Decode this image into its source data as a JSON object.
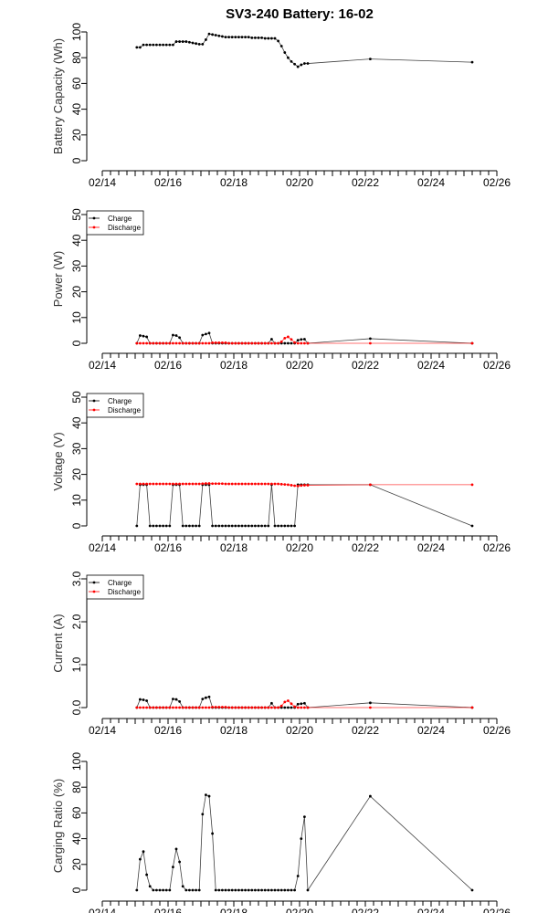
{
  "chart_data": {
    "title": "SV3-240 Battery: 16-02",
    "x_tick_labels": [
      "02/14",
      "02/16",
      "02/18",
      "02/20",
      "02/22",
      "02/24",
      "02/26"
    ],
    "x_tick_days": [
      14,
      16,
      18,
      20,
      22,
      24,
      26
    ],
    "xlim_days": [
      14,
      26
    ],
    "t": [
      15.05,
      15.15,
      15.25,
      15.35,
      15.45,
      15.55,
      15.65,
      15.75,
      15.85,
      15.95,
      16.05,
      16.15,
      16.25,
      16.35,
      16.45,
      16.55,
      16.65,
      16.75,
      16.85,
      16.95,
      17.05,
      17.15,
      17.25,
      17.35,
      17.45,
      17.55,
      17.65,
      17.75,
      17.85,
      17.95,
      18.05,
      18.15,
      18.25,
      18.35,
      18.45,
      18.55,
      18.65,
      18.75,
      18.85,
      18.95,
      19.05,
      19.15,
      19.25,
      19.35,
      19.45,
      19.55,
      19.65,
      19.75,
      19.85,
      19.95,
      20.05,
      20.15,
      20.25,
      22.15,
      25.25
    ],
    "panels": [
      {
        "type": "line",
        "ylabel": "Battery Capacity (Wh)",
        "ylim": [
          0,
          100
        ],
        "yticks": [
          0,
          20,
          40,
          60,
          80,
          100
        ],
        "ytick_labels": [
          "0",
          "20",
          "40",
          "60",
          "80",
          "100"
        ],
        "legend": null,
        "series": [
          {
            "name": "Capacity",
            "color": "#000000",
            "values": [
              88,
              88,
              90,
              90,
              90,
              90,
              90,
              90,
              90,
              90,
              90,
              90,
              92.5,
              92.5,
              92.5,
              92.5,
              92,
              91.5,
              91,
              90.5,
              90.5,
              94,
              98.5,
              98,
              97.5,
              97,
              96.5,
              96,
              96,
              96,
              96,
              96,
              96,
              96,
              96,
              95.5,
              95.5,
              95.5,
              95.5,
              95,
              95,
              95,
              95,
              93,
              89,
              84,
              80,
              77,
              75,
              73,
              74.5,
              75.5,
              75.5,
              79,
              76.5
            ]
          }
        ]
      },
      {
        "type": "line",
        "ylabel": "Power (W)",
        "ylim": [
          0,
          50
        ],
        "yticks": [
          0,
          10,
          20,
          30,
          40,
          50
        ],
        "ytick_labels": [
          "0",
          "10",
          "20",
          "30",
          "40",
          "50"
        ],
        "legend": "top-left",
        "series": [
          {
            "name": "Charge",
            "color": "#000000",
            "values": [
              0,
              3,
              2.8,
              2.5,
              0,
              0,
              0,
              0,
              0,
              0,
              0,
              3.2,
              3.0,
              2.2,
              0,
              0,
              0,
              0,
              0,
              0,
              3.2,
              3.6,
              4.0,
              0,
              0,
              0,
              0,
              0,
              0,
              0,
              0,
              0,
              0,
              0,
              0,
              0,
              0,
              0,
              0,
              0,
              0,
              1.6,
              0,
              0,
              0,
              0,
              0,
              0,
              0,
              1.2,
              1.5,
              1.6,
              0,
              1.8,
              0
            ]
          },
          {
            "name": "Discharge",
            "color": "#ff0000",
            "values": [
              0,
              0,
              0,
              0,
              0,
              0,
              0,
              0,
              0,
              0,
              0,
              0,
              0,
              0,
              0,
              0,
              0,
              0,
              0,
              0,
              0,
              0,
              0,
              0.2,
              0.2,
              0.2,
              0.2,
              0.2,
              0,
              0,
              0,
              0,
              0,
              0,
              0,
              0,
              0,
              0,
              0,
              0,
              0,
              0,
              0,
              0,
              0.6,
              2.0,
              2.5,
              1.5,
              0.3,
              0,
              0,
              0,
              0,
              0,
              0
            ]
          }
        ]
      },
      {
        "type": "line",
        "ylabel": "Voltage (V)",
        "ylim": [
          0,
          50
        ],
        "yticks": [
          0,
          10,
          20,
          30,
          40,
          50
        ],
        "ytick_labels": [
          "0",
          "10",
          "20",
          "30",
          "40",
          "50"
        ],
        "legend": "top-left",
        "series": [
          {
            "name": "Charge",
            "color": "#000000",
            "values": [
              0,
              16,
              16,
              16,
              0,
              0,
              0,
              0,
              0,
              0,
              0,
              16,
              16,
              16,
              0,
              0,
              0,
              0,
              0,
              0,
              16,
              16,
              16,
              0,
              0,
              0,
              0,
              0,
              0,
              0,
              0,
              0,
              0,
              0,
              0,
              0,
              0,
              0,
              0,
              0,
              0,
              16,
              0,
              0,
              0,
              0,
              0,
              0,
              0,
              16,
              16,
              16,
              16,
              16,
              0
            ]
          },
          {
            "name": "Discharge",
            "color": "#ff0000",
            "values": [
              16.3,
              16.3,
              16.3,
              16.3,
              16.3,
              16.3,
              16.3,
              16.3,
              16.3,
              16.3,
              16.3,
              16.3,
              16.3,
              16.3,
              16.3,
              16.3,
              16.3,
              16.3,
              16.3,
              16.3,
              16.4,
              16.5,
              16.5,
              16.4,
              16.4,
              16.4,
              16.4,
              16.3,
              16.3,
              16.3,
              16.3,
              16.3,
              16.3,
              16.3,
              16.3,
              16.3,
              16.3,
              16.3,
              16.3,
              16.3,
              16.3,
              16.3,
              16.3,
              16.3,
              16.2,
              16.1,
              16.0,
              15.8,
              15.6,
              15.5,
              15.7,
              15.8,
              15.8,
              16.0,
              16.0
            ]
          }
        ]
      },
      {
        "type": "line",
        "ylabel": "Current (A)",
        "ylim": [
          0,
          3
        ],
        "yticks": [
          0,
          1,
          2,
          3
        ],
        "ytick_labels": [
          "0.0",
          "1.0",
          "2.0",
          "3.0"
        ],
        "legend": "top-left",
        "series": [
          {
            "name": "Charge",
            "color": "#000000",
            "values": [
              0,
              0.19,
              0.18,
              0.16,
              0,
              0,
              0,
              0,
              0,
              0,
              0,
              0.2,
              0.19,
              0.14,
              0,
              0,
              0,
              0,
              0,
              0,
              0.2,
              0.23,
              0.25,
              0,
              0,
              0,
              0,
              0,
              0,
              0,
              0,
              0,
              0,
              0,
              0,
              0,
              0,
              0,
              0,
              0,
              0,
              0.1,
              0,
              0,
              0,
              0,
              0,
              0,
              0,
              0.08,
              0.09,
              0.1,
              0,
              0.11,
              0
            ]
          },
          {
            "name": "Discharge",
            "color": "#ff0000",
            "values": [
              0,
              0,
              0,
              0,
              0,
              0,
              0,
              0,
              0,
              0,
              0,
              0,
              0,
              0,
              0,
              0,
              0,
              0,
              0,
              0,
              0,
              0,
              0,
              0.01,
              0.01,
              0.01,
              0.01,
              0.01,
              0,
              0,
              0,
              0,
              0,
              0,
              0,
              0,
              0,
              0,
              0,
              0,
              0,
              0,
              0,
              0,
              0.04,
              0.13,
              0.16,
              0.09,
              0.02,
              0,
              0,
              0,
              0,
              0,
              0
            ]
          }
        ]
      },
      {
        "type": "line",
        "ylabel": "Carging Ratio (%)",
        "ylim": [
          0,
          100
        ],
        "yticks": [
          0,
          20,
          40,
          60,
          80,
          100
        ],
        "ytick_labels": [
          "0",
          "20",
          "40",
          "60",
          "80",
          "100"
        ],
        "legend": null,
        "series": [
          {
            "name": "Charging Ratio",
            "color": "#000000",
            "values": [
              0,
              24,
              30,
              12,
              3,
              0,
              0,
              0,
              0,
              0,
              0,
              18,
              32,
              22,
              3,
              0,
              0,
              0,
              0,
              0,
              59,
              74,
              73,
              44,
              0,
              0,
              0,
              0,
              0,
              0,
              0,
              0,
              0,
              0,
              0,
              0,
              0,
              0,
              0,
              0,
              0,
              0,
              0,
              0,
              0,
              0,
              0,
              0,
              0,
              11,
              40,
              57,
              0,
              73,
              0
            ]
          }
        ]
      }
    ]
  }
}
